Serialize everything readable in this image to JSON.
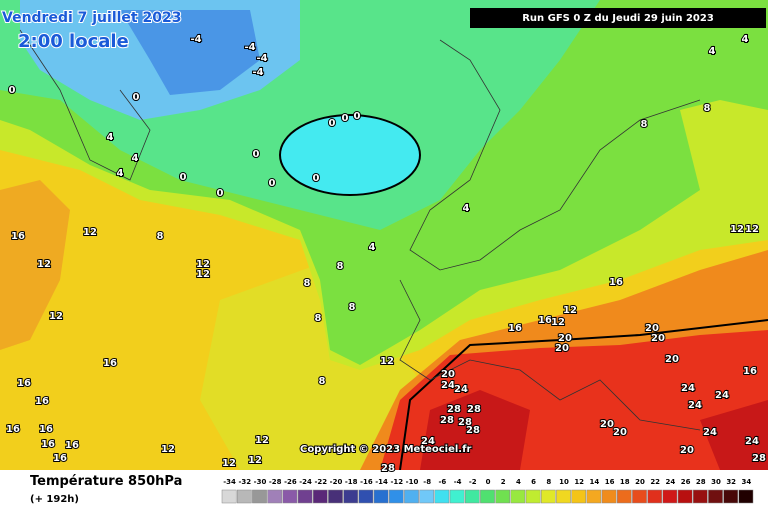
{
  "date": "Vendredi 7 juillet 2023",
  "time": "2:00 locale",
  "run": "Run GFS 0 Z du Jeudi 29 juin 2023",
  "copyright": "Copyright © 2023 Meteociel.fr",
  "field": "Température 850hPa",
  "lead": "(+ 192h)",
  "contour_labels": [
    "-4",
    "-4",
    "-4",
    "-4",
    "0",
    "0",
    "4",
    "4",
    "4",
    "0",
    "0",
    "0",
    "0",
    "0",
    "0",
    "0",
    "0",
    "4",
    "4",
    "8",
    "12",
    "16",
    "12",
    "12",
    "12",
    "8",
    "8",
    "8",
    "8",
    "12",
    "16",
    "16",
    "16",
    "12",
    "8",
    "16",
    "16",
    "16",
    "12",
    "12",
    "20",
    "20",
    "20",
    "20",
    "20",
    "20",
    "24",
    "24",
    "28",
    "28",
    "28",
    "28",
    "28",
    "24",
    "24",
    "24",
    "20",
    "20",
    "24",
    "20",
    "24",
    "28",
    "24",
    "28",
    "16",
    "12",
    "12",
    "8",
    "8",
    "4",
    "4",
    "12",
    "12",
    "12",
    "12",
    "16",
    "16",
    "16",
    "16",
    "16"
  ],
  "scale": {
    "labels": [
      -34,
      -32,
      -30,
      -28,
      -26,
      -24,
      -22,
      -20,
      -18,
      -16,
      -14,
      -12,
      -10,
      -8,
      -6,
      -4,
      -2,
      0,
      2,
      4,
      6,
      8,
      10,
      12,
      14,
      16,
      18,
      20,
      22,
      24,
      26,
      28,
      30,
      32,
      34
    ],
    "colors": [
      "#d8d8d8",
      "#b8b8b8",
      "#989898",
      "#a080b8",
      "#8a5aa8",
      "#704090",
      "#5a2878",
      "#483078",
      "#3c3c90",
      "#3050b0",
      "#2870d0",
      "#3090e8",
      "#50b0f0",
      "#70c8f8",
      "#40e0f0",
      "#40f0d0",
      "#40e8a0",
      "#50e070",
      "#70e050",
      "#98e840",
      "#c0ec30",
      "#e0e828",
      "#f0d820",
      "#f4c418",
      "#f4a820",
      "#f08c1c",
      "#ec6c1c",
      "#e84c1c",
      "#e0301c",
      "#d01818",
      "#b81010",
      "#981010",
      "#701010",
      "#480808",
      "#200000"
    ]
  }
}
